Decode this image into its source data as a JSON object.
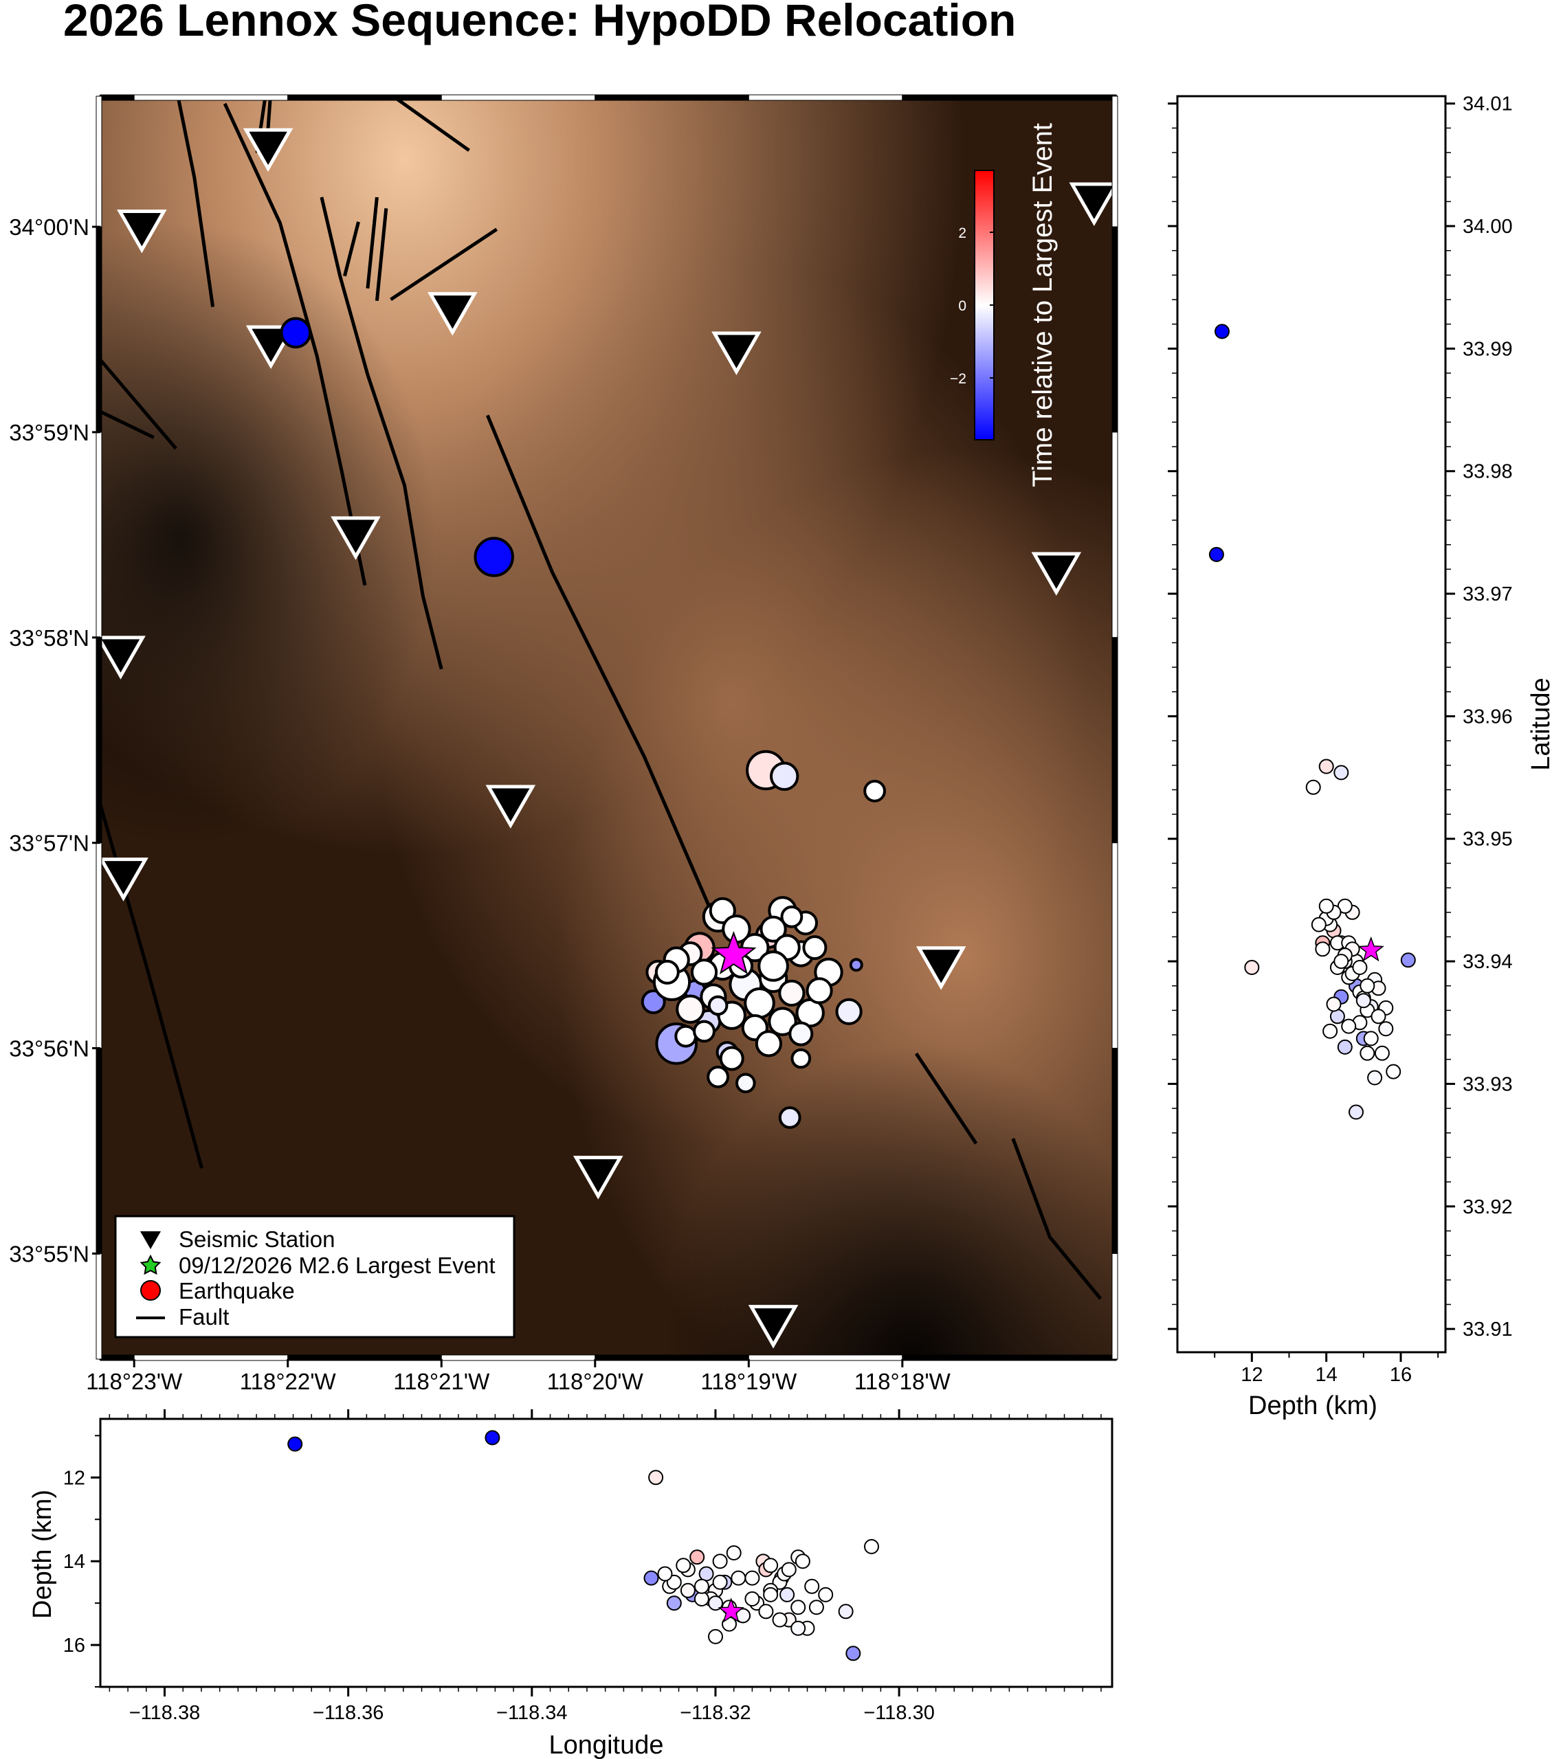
{
  "title": "2026 Lennox Sequence: HypoDD Relocation",
  "map": {
    "lon_labels": [
      "118°23'W",
      "118°22'W",
      "118°21'W",
      "118°20'W",
      "118°19'W",
      "118°18'W"
    ],
    "lat_labels": [
      "34°00'N",
      "33°59'N",
      "33°58'N",
      "33°57'N",
      "33°56'N",
      "33°55'N"
    ],
    "lon_range": [
      -118.387,
      -118.2768
    ],
    "lat_range": [
      33.9081,
      34.0106
    ]
  },
  "colorbar": {
    "label": "Time relative to Largest Event",
    "ticks": [
      "2",
      "0",
      "−2"
    ],
    "range": [
      -3.5,
      3.5
    ],
    "colors": {
      "low": "#0000ff",
      "mid": "#ffffff",
      "high": "#ff0000"
    }
  },
  "legend": {
    "station": "Seismic Station",
    "largest": "09/12/2026 M2.6 Largest Event",
    "quake": "Earthquake",
    "fault": "Fault"
  },
  "depth_panel": {
    "xlabel": "Depth (km)",
    "ylabel": "Latitude",
    "xticks": [
      "12",
      "14",
      "16"
    ],
    "yticks": [
      "34.01",
      "34.00",
      "33.99",
      "33.98",
      "33.97",
      "33.96",
      "33.95",
      "33.94",
      "33.93",
      "33.92",
      "33.91"
    ],
    "xlim": [
      10.0,
      17.2
    ],
    "ylim": [
      33.9081,
      34.0106
    ]
  },
  "lon_panel": {
    "xlabel": "Longitude",
    "ylabel": "Depth (km)",
    "xticks": [
      "−118.38",
      "−118.36",
      "−118.34",
      "−118.32",
      "−118.30"
    ],
    "yticks": [
      "12",
      "14",
      "16"
    ],
    "xlim": [
      -118.387,
      -118.2768
    ],
    "ylim": [
      10.6,
      17.0
    ]
  },
  "chart_data": {
    "type": "scatter",
    "stations": [
      {
        "lon": -118.3688,
        "lat": 34.0063
      },
      {
        "lon": -118.3825,
        "lat": 33.9997
      },
      {
        "lon": -118.3685,
        "lat": 33.9903
      },
      {
        "lon": -118.3488,
        "lat": 33.993
      },
      {
        "lon": -118.318,
        "lat": 33.9898
      },
      {
        "lon": -118.2792,
        "lat": 34.0019
      },
      {
        "lon": -118.3593,
        "lat": 33.9748
      },
      {
        "lon": -118.2833,
        "lat": 33.9719
      },
      {
        "lon": -118.3848,
        "lat": 33.9651
      },
      {
        "lon": -118.3425,
        "lat": 33.953
      },
      {
        "lon": -118.3845,
        "lat": 33.9471
      },
      {
        "lon": -118.2958,
        "lat": 33.9399
      },
      {
        "lon": -118.333,
        "lat": 33.9229
      },
      {
        "lon": -118.314,
        "lat": 33.9108
      }
    ],
    "faults": [
      [
        [
          -118.3788,
          34.0114
        ],
        [
          -118.3768,
          34.004
        ],
        [
          -118.3748,
          33.9935
        ]
      ],
      [
        [
          -118.3735,
          34.01
        ],
        [
          -118.3675,
          34.0003
        ],
        [
          -118.3635,
          33.9895
        ],
        [
          -118.3608,
          33.9801
        ],
        [
          -118.3583,
          33.9709
        ]
      ],
      [
        [
          -118.369,
          34.0111
        ],
        [
          -118.37,
          34.006
        ]
      ],
      [
        [
          -118.3685,
          34.0111
        ],
        [
          -118.369,
          34.006
        ]
      ],
      [
        [
          -118.363,
          34.0024
        ],
        [
          -118.361,
          33.996
        ],
        [
          -118.358,
          33.988
        ],
        [
          -118.354,
          33.979
        ],
        [
          -118.352,
          33.97
        ],
        [
          -118.35,
          33.9641
        ]
      ],
      [
        [
          -118.359,
          34.0004
        ],
        [
          -118.3605,
          33.996
        ]
      ],
      [
        [
          -118.357,
          34.0024
        ],
        [
          -118.358,
          33.995
        ]
      ],
      [
        [
          -118.356,
          34.0015
        ],
        [
          -118.357,
          33.994
        ]
      ],
      [
        [
          -118.3555,
          33.9941
        ],
        [
          -118.344,
          33.9998
        ]
      ],
      [
        [
          -118.356,
          34.011
        ],
        [
          -118.347,
          34.0062
        ]
      ],
      [
        [
          -118.345,
          33.9847
        ],
        [
          -118.338,
          33.972
        ],
        [
          -118.328,
          33.957
        ],
        [
          -118.321,
          33.9449
        ]
      ],
      [
        [
          -118.387,
          33.9892
        ],
        [
          -118.3788,
          33.982
        ]
      ],
      [
        [
          -118.387,
          33.985
        ],
        [
          -118.3812,
          33.9829
        ]
      ],
      [
        [
          -118.387,
          33.9531
        ],
        [
          -118.382,
          33.94
        ],
        [
          -118.376,
          33.9236
        ]
      ],
      [
        [
          -118.2985,
          33.9329
        ],
        [
          -118.292,
          33.9256
        ]
      ],
      [
        [
          -118.288,
          33.926
        ],
        [
          -118.284,
          33.918
        ],
        [
          -118.2785,
          33.913
        ]
      ]
    ],
    "largest_event": {
      "lon": -118.3183,
      "lat": 33.9409,
      "depth": 15.2,
      "t": 0
    },
    "events": [
      {
        "lon": -118.3658,
        "lat": 33.9914,
        "depth": 11.2,
        "t": -3.5,
        "r": 13
      },
      {
        "lon": -118.3443,
        "lat": 33.9732,
        "depth": 11.05,
        "t": -3.4,
        "r": 17
      },
      {
        "lon": -118.3148,
        "lat": 33.9559,
        "depth": 14.0,
        "t": 0.4,
        "r": 17
      },
      {
        "lon": -118.3128,
        "lat": 33.9554,
        "depth": 14.4,
        "t": -0.3,
        "r": 12
      },
      {
        "lon": -118.303,
        "lat": 33.9542,
        "depth": 13.65,
        "t": 0.0,
        "r": 9
      },
      {
        "lon": -118.3122,
        "lat": 33.9277,
        "depth": 14.8,
        "t": -0.3,
        "r": 9
      },
      {
        "lon": -118.305,
        "lat": 33.9401,
        "depth": 16.2,
        "t": -1.5,
        "r": 5
      },
      {
        "lon": -118.3265,
        "lat": 33.9395,
        "depth": 12.0,
        "t": 0.3,
        "r": 10
      },
      {
        "lon": -118.322,
        "lat": 33.9415,
        "depth": 13.9,
        "t": 0.9,
        "r": 13
      },
      {
        "lon": -118.32,
        "lat": 33.944,
        "depth": 14.7,
        "t": 0.1,
        "r": 13
      },
      {
        "lon": -118.3145,
        "lat": 33.9425,
        "depth": 14.2,
        "t": 0.6,
        "r": 11
      },
      {
        "lon": -118.313,
        "lat": 33.9445,
        "depth": 14.5,
        "t": 0.0,
        "r": 12
      },
      {
        "lon": -118.311,
        "lat": 33.941,
        "depth": 13.9,
        "t": 0.0,
        "r": 11
      },
      {
        "lon": -118.308,
        "lat": 33.9395,
        "depth": 14.8,
        "t": 0.0,
        "r": 12
      },
      {
        "lon": -118.3058,
        "lat": 33.9363,
        "depth": 15.2,
        "t": -0.2,
        "r": 11
      },
      {
        "lon": -118.327,
        "lat": 33.9371,
        "depth": 14.4,
        "t": -1.6,
        "r": 10
      },
      {
        "lon": -118.3245,
        "lat": 33.9337,
        "depth": 15.0,
        "t": -1.2,
        "r": 18
      },
      {
        "lon": -118.3225,
        "lat": 33.938,
        "depth": 14.8,
        "t": -1.4,
        "r": 9
      },
      {
        "lon": -118.321,
        "lat": 33.9355,
        "depth": 14.3,
        "t": -0.5,
        "r": 10
      },
      {
        "lon": -118.319,
        "lat": 33.933,
        "depth": 14.5,
        "t": -0.6,
        "r": 9
      },
      {
        "lon": -118.325,
        "lat": 33.9387,
        "depth": 14.6,
        "t": 0.0,
        "r": 16
      },
      {
        "lon": -118.323,
        "lat": 33.9365,
        "depth": 14.2,
        "t": 0.1,
        "r": 12
      },
      {
        "lon": -118.3205,
        "lat": 33.9375,
        "depth": 14.9,
        "t": 0.0,
        "r": 11
      },
      {
        "lon": -118.3185,
        "lat": 33.936,
        "depth": 15.1,
        "t": 0.0,
        "r": 12
      },
      {
        "lon": -118.317,
        "lat": 33.9385,
        "depth": 15.3,
        "t": -0.1,
        "r": 14
      },
      {
        "lon": -118.3155,
        "lat": 33.937,
        "depth": 15.0,
        "t": 0.0,
        "r": 13
      },
      {
        "lon": -118.314,
        "lat": 33.939,
        "depth": 14.7,
        "t": 0.0,
        "r": 12
      },
      {
        "lon": -118.312,
        "lat": 33.9378,
        "depth": 15.4,
        "t": 0.1,
        "r": 11
      },
      {
        "lon": -118.31,
        "lat": 33.9362,
        "depth": 15.6,
        "t": 0.0,
        "r": 12
      },
      {
        "lon": -118.316,
        "lat": 33.935,
        "depth": 14.9,
        "t": 0.0,
        "r": 11
      },
      {
        "lon": -118.3185,
        "lat": 33.9325,
        "depth": 15.5,
        "t": 0.0,
        "r": 10
      },
      {
        "lon": -118.32,
        "lat": 33.931,
        "depth": 15.8,
        "t": 0.0,
        "r": 9
      },
      {
        "lon": -118.317,
        "lat": 33.9305,
        "depth": 15.3,
        "t": -0.1,
        "r": 8
      },
      {
        "lon": -118.316,
        "lat": 33.9415,
        "depth": 14.4,
        "t": 0.0,
        "r": 12
      },
      {
        "lon": -118.314,
        "lat": 33.943,
        "depth": 14.1,
        "t": 0.0,
        "r": 11
      },
      {
        "lon": -118.3125,
        "lat": 33.9415,
        "depth": 14.3,
        "t": 0.0,
        "r": 11
      },
      {
        "lon": -118.3105,
        "lat": 33.9435,
        "depth": 14.0,
        "t": 0.0,
        "r": 10
      },
      {
        "lon": -118.3095,
        "lat": 33.9415,
        "depth": 14.6,
        "t": 0.0,
        "r": 10
      },
      {
        "lon": -118.309,
        "lat": 33.938,
        "depth": 15.1,
        "t": 0.0,
        "r": 11
      },
      {
        "lon": -118.313,
        "lat": 33.9355,
        "depth": 15.4,
        "t": 0.0,
        "r": 12
      },
      {
        "lon": -118.311,
        "lat": 33.9345,
        "depth": 15.6,
        "t": -0.1,
        "r": 10
      },
      {
        "lon": -118.3145,
        "lat": 33.9337,
        "depth": 15.2,
        "t": 0.0,
        "r": 11
      },
      {
        "lon": -118.314,
        "lat": 33.94,
        "depth": 14.8,
        "t": 0.0,
        "r": 13
      },
      {
        "lon": -118.3195,
        "lat": 33.94,
        "depth": 14.5,
        "t": 0.0,
        "r": 12
      },
      {
        "lon": -118.3215,
        "lat": 33.9395,
        "depth": 14.9,
        "t": 0.0,
        "r": 11
      },
      {
        "lon": -118.323,
        "lat": 33.941,
        "depth": 14.7,
        "t": 0.1,
        "r": 10
      },
      {
        "lon": -118.3245,
        "lat": 33.9405,
        "depth": 14.5,
        "t": 0.0,
        "r": 11
      },
      {
        "lon": -118.3255,
        "lat": 33.9395,
        "depth": 14.3,
        "t": 0.0,
        "r": 10
      },
      {
        "lon": -118.3235,
        "lat": 33.9343,
        "depth": 14.1,
        "t": 0.0,
        "r": 9
      },
      {
        "lon": -118.3215,
        "lat": 33.9347,
        "depth": 14.6,
        "t": 0.0,
        "r": 9
      },
      {
        "lon": -118.312,
        "lat": 33.944,
        "depth": 14.2,
        "t": 0.0,
        "r": 9
      },
      {
        "lon": -118.3195,
        "lat": 33.9445,
        "depth": 14.0,
        "t": 0.0,
        "r": 11
      },
      {
        "lon": -118.318,
        "lat": 33.943,
        "depth": 13.8,
        "t": 0.0,
        "r": 12
      },
      {
        "lon": -118.311,
        "lat": 33.9325,
        "depth": 15.1,
        "t": 0.0,
        "r": 8
      },
      {
        "lon": -118.32,
        "lat": 33.9368,
        "depth": 15.0,
        "t": -0.2,
        "r": 8
      },
      {
        "lon": -118.3175,
        "lat": 33.94,
        "depth": 14.4,
        "t": 0.0,
        "r": 10
      }
    ]
  }
}
